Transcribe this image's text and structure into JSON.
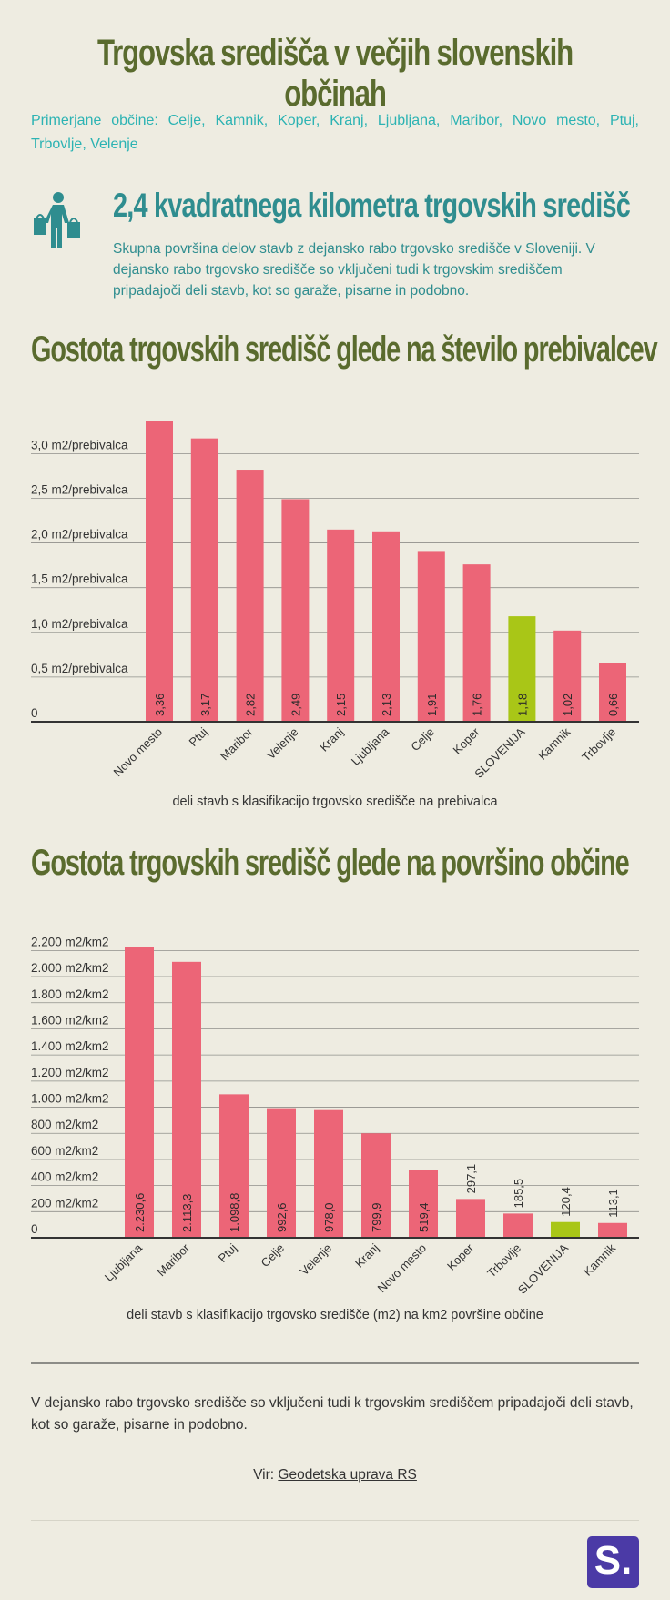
{
  "header": {
    "title": "Trgovska središča v večjih slovenskih občinah",
    "subtitle": "Primerjane občine: Celje, Kamnik, Koper, Kranj, Ljubljana, Maribor, Novo mesto, Ptuj, Trbovlje, Velenje"
  },
  "stat": {
    "icon": "shopping-person-icon",
    "title": "2,4 kvadratnega kilometra trgovskih središč",
    "text": "Skupna površina delov stavb z dejansko rabo trgovsko središče v Sloveniji. V dejansko rabo trgovsko središče so vključeni tudi k trgovskim središčem pripadajoči deli stavb, kot so garaže, pisarne in podobno."
  },
  "colors": {
    "bar": "#ec6577",
    "highlight": "#a9c617",
    "title_green": "#5a6b2e",
    "teal": "#2cb3b3"
  },
  "chart_data": [
    {
      "type": "bar",
      "title": "Gostota trgovskih središč glede na število prebivalcev",
      "xlabel": "deli stavb s klasifikacijo trgovsko središče na prebivalca",
      "categories": [
        "Novo mesto",
        "Ptuj",
        "Maribor",
        "Velenje",
        "Kranj",
        "Ljubljana",
        "Celje",
        "Koper",
        "SLOVENIJA",
        "Kamnik",
        "Trbovlje"
      ],
      "values": [
        3.36,
        3.17,
        2.82,
        2.49,
        2.15,
        2.13,
        1.91,
        1.76,
        1.18,
        1.02,
        0.66
      ],
      "value_labels": [
        "3,36",
        "3,17",
        "2,82",
        "2,49",
        "2,15",
        "2,13",
        "1,91",
        "1,76",
        "1,18",
        "1,02",
        "0,66"
      ],
      "highlight": "SLOVENIJA",
      "yticks": [
        0,
        0.5,
        1.0,
        1.5,
        2.0,
        2.5,
        3.0
      ],
      "ytick_labels": [
        "0",
        "0,5 m2/prebivalca",
        "1,0 m2/prebivalca",
        "1,5 m2/prebivalca",
        "2,0 m2/prebivalca",
        "2,5 m2/prebivalca",
        "3,0 m2/prebivalca"
      ],
      "ylim": [
        0,
        3.36
      ],
      "grid": true
    },
    {
      "type": "bar",
      "title": "Gostota trgovskih središč glede na površino občine",
      "xlabel": "deli stavb s klasifikacijo trgovsko središče (m2) na km2 površine občine",
      "categories": [
        "Ljubljana",
        "Maribor",
        "Ptuj",
        "Celje",
        "Velenje",
        "Kranj",
        "Novo mesto",
        "Koper",
        "Trbovlje",
        "SLOVENIJA",
        "Kamnik"
      ],
      "values": [
        2230.6,
        2113.3,
        1098.8,
        992.6,
        978.0,
        799.9,
        519.4,
        297.1,
        185.5,
        120.4,
        113.1
      ],
      "value_labels": [
        "2.230,6",
        "2.113,3",
        "1.098,8",
        "992,6",
        "978,0",
        "799,9",
        "519,4",
        "297,1",
        "185,5",
        "120,4",
        "113,1"
      ],
      "highlight": "SLOVENIJA",
      "yticks": [
        0,
        200,
        400,
        600,
        800,
        1000,
        1200,
        1400,
        1600,
        1800,
        2000,
        2200
      ],
      "ytick_labels": [
        "0",
        "200 m2/km2",
        "400 m2/km2",
        "600 m2/km2",
        "800 m2/km2",
        "1.000 m2/km2",
        "1.200 m2/km2",
        "1.400 m2/km2",
        "1.600 m2/km2",
        "1.800 m2/km2",
        "2.000 m2/km2",
        "2.200 m2/km2"
      ],
      "ylim": [
        0,
        2230.6
      ],
      "grid": true
    }
  ],
  "footer": {
    "note": "V dejansko rabo trgovsko središče so vključeni tudi k trgovskim središčem pripadajoči deli stavb, kot so garaže, pisarne in podobno.",
    "source_prefix": "Vir:",
    "source_link": "Geodetska uprava RS",
    "logo": "S."
  }
}
